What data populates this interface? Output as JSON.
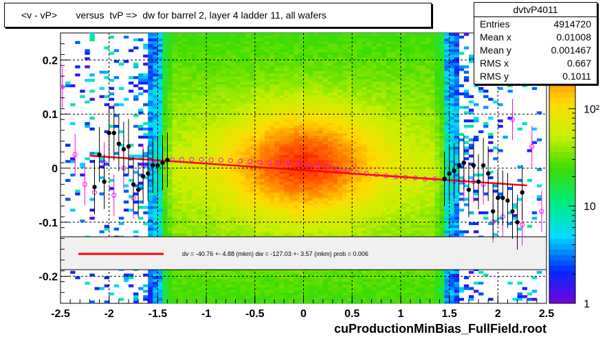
{
  "title": "<v - vP>       versus  tvP =>  dw for barrel 2, layer 4 ladder 11, all wafers",
  "footer": "cuProductionMinBias_FullField.root",
  "stats": {
    "name": "dvtvP4011",
    "rows": [
      {
        "label": "Entries",
        "value": "4914720"
      },
      {
        "label": "Mean x",
        "value": "0.01008"
      },
      {
        "label": "Mean y",
        "value": "0.001467"
      },
      {
        "label": "RMS x",
        "value": "0.667"
      },
      {
        "label": "RMS y",
        "value": "0.1011"
      }
    ]
  },
  "legend": {
    "text": "dv =  -40.76 +-  4.88 (mkm) dw = -127.03 +-  3.57 (mkm) prob = 0.006",
    "line_color": "#ff0000"
  },
  "chart_data": {
    "type": "heatmap",
    "xlim": [
      -2.5,
      2.5
    ],
    "ylim": [
      -0.25,
      0.25
    ],
    "x_ticks": [
      -2.5,
      -2,
      -1.5,
      -1,
      -0.5,
      0,
      0.5,
      1,
      1.5,
      2,
      2.5
    ],
    "x_tick_labels": [
      "-2.5",
      "-2",
      "-1.5",
      "-1",
      "-0.5",
      "0",
      "0.5",
      "1",
      "1.5",
      "2",
      "2.5"
    ],
    "y_ticks": [
      -0.2,
      -0.1,
      0,
      0.1,
      0.2
    ],
    "y_tick_labels": [
      "-0.2",
      "-0.1",
      "0",
      "0.1",
      "0.2"
    ],
    "z_scale": "log",
    "z_ticks": [
      1,
      10,
      100
    ],
    "z_tick_labels": [
      "1",
      "10",
      "10²"
    ],
    "grid": true,
    "fit_line": {
      "color": "#ff0000",
      "points": [
        [
          -2.2,
          0.023
        ],
        [
          2.3,
          -0.032
        ]
      ]
    },
    "mean_profile": {
      "marker": "open-circle",
      "color": "#ff00ff",
      "x": [
        -2.48,
        -2.35,
        -2.25,
        -2.15,
        -2.05,
        -1.95,
        -1.85,
        -1.75,
        -1.65,
        -1.55,
        -1.45,
        -1.35,
        -1.25,
        -1.15,
        -1.05,
        -0.95,
        -0.85,
        -0.75,
        -0.65,
        -0.55,
        -0.45,
        -0.35,
        -0.25,
        -0.15,
        -0.05,
        0.05,
        0.15,
        0.25,
        0.35,
        0.45,
        0.55,
        0.65,
        0.75,
        0.85,
        0.95,
        1.05,
        1.15,
        1.25,
        1.35,
        1.45,
        1.55,
        1.65,
        1.75,
        1.85,
        1.95,
        2.05,
        2.15,
        2.25,
        2.35,
        2.45
      ],
      "y": [
        0.15,
        0.025,
        -0.03,
        -0.045,
        0.01,
        -0.05,
        0.0,
        -0.055,
        0.005,
        0.01,
        0.012,
        0.015,
        0.016,
        0.016,
        0.016,
        0.015,
        0.015,
        0.014,
        0.013,
        0.012,
        0.011,
        0.01,
        0.01,
        0.01,
        0.008,
        0.006,
        0.004,
        0.002,
        -0.002,
        -0.004,
        -0.008,
        -0.01,
        -0.012,
        -0.014,
        -0.016,
        -0.017,
        -0.018,
        -0.02,
        -0.02,
        -0.02,
        -0.025,
        -0.025,
        -0.025,
        -0.03,
        -0.1,
        -0.09,
        0.09,
        -0.105,
        0.04,
        -0.08
      ]
    },
    "fit_points": {
      "marker": "filled-circle",
      "color": "#000000",
      "x": [
        -2.15,
        -2.1,
        -2.05,
        -2.0,
        -1.95,
        -1.9,
        -1.85,
        -1.8,
        -1.75,
        -1.7,
        -1.65,
        -1.6,
        -1.55,
        -1.5,
        -1.45,
        -1.4,
        1.45,
        1.5,
        1.55,
        1.6,
        1.65,
        1.7,
        1.75,
        1.8,
        1.85,
        1.9,
        1.95,
        2.0,
        2.05,
        2.1,
        2.15,
        2.2,
        2.25
      ],
      "y": [
        -0.035,
        0.025,
        -0.025,
        0.065,
        0.065,
        0.045,
        0.035,
        0.04,
        -0.03,
        -0.04,
        -0.015,
        -0.01,
        0.005,
        0.005,
        0.01,
        0.015,
        -0.02,
        -0.01,
        -0.005,
        0.005,
        0.01,
        -0.04,
        0.005,
        -0.025,
        0.005,
        -0.01,
        -0.08,
        -0.055,
        -0.055,
        -0.06,
        -0.08,
        -0.1,
        -0.045
      ]
    }
  }
}
